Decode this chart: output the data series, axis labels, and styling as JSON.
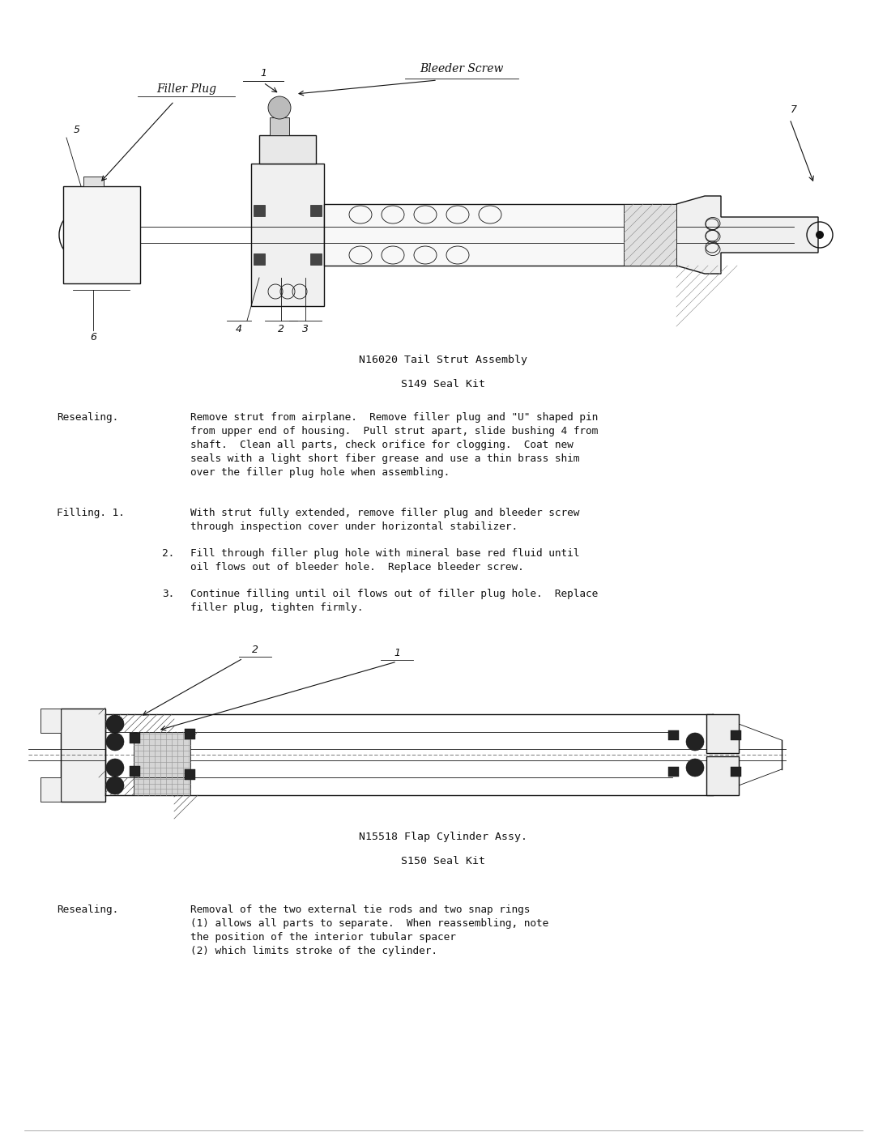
{
  "page_bg": "#ffffff",
  "page_width": 10.95,
  "page_height": 14.14,
  "dpi": 100,
  "diagram1": {
    "caption_line1": "N16020 Tail Strut Assembly",
    "caption_line2": "S149 Seal Kit"
  },
  "diagram2": {
    "caption_line1": "N15518 Flap Cylinder Assy.",
    "caption_line2": "S150 Seal Kit"
  },
  "resealing1_head": "Resealing.",
  "resealing1_text": "Remove strut from airplane.  Remove filler plug and \"U\" shaped pin\nfrom upper end of housing.  Pull strut apart, slide bushing 4 from\nshaft.  Clean all parts, check orifice for clogging.  Coat new\nseals with a light short fiber grease and use a thin brass shim\nover the filler plug hole when assembling.",
  "filling_head": "Filling. 1.",
  "filling_item1": "With strut fully extended, remove filler plug and bleeder screw\nthrough inspection cover under horizontal stabilizer.",
  "filling_item2_num": "2.",
  "filling_item2": "Fill through filler plug hole with mineral base red fluid until\noil flows out of bleeder hole.  Replace bleeder screw.",
  "filling_item3_num": "3.",
  "filling_item3": "Continue filling until oil flows out of filler plug hole.  Replace\nfiller plug, tighten firmly.",
  "resealing2_head": "Resealing.",
  "resealing2_text": "Removal of the two external tie rods and two snap rings\n(1) allows all parts to separate.  When reassembling, note\nthe position of the interior tubular spacer\n(2) which limits stroke of the cylinder.",
  "lc": "#111111",
  "tc": "#111111",
  "fs_body": 9.2,
  "fs_caption": 9.5,
  "fs_label": 8.0
}
